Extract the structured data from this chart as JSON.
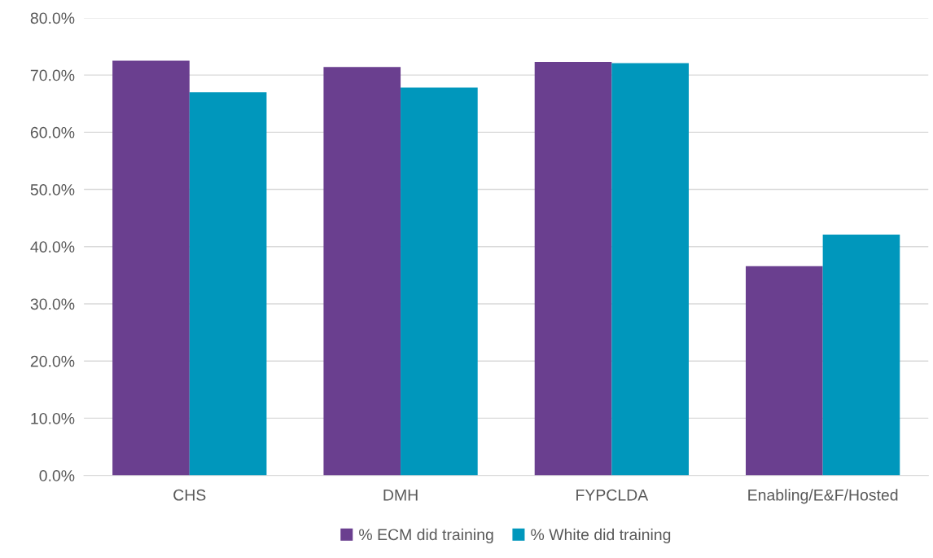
{
  "chart_data": {
    "type": "bar",
    "categories": [
      "CHS",
      "DMH",
      "FYPCLDA",
      "Enabling/E&F/Hosted"
    ],
    "series": [
      {
        "name": "% ECM did training",
        "color": "#6a3f8f",
        "values": [
          72.5,
          71.4,
          72.3,
          36.6
        ]
      },
      {
        "name": "% White did training",
        "color": "#0097bc",
        "values": [
          67.0,
          67.8,
          72.1,
          42.1
        ]
      }
    ],
    "ylim": [
      0,
      80
    ],
    "yticks": [
      {
        "value": 0,
        "label": "0.0%"
      },
      {
        "value": 10,
        "label": "10.0%"
      },
      {
        "value": 20,
        "label": "20.0%"
      },
      {
        "value": 30,
        "label": "30.0%"
      },
      {
        "value": 40,
        "label": "40.0%"
      },
      {
        "value": 50,
        "label": "50.0%"
      },
      {
        "value": 60,
        "label": "60.0%"
      },
      {
        "value": 70,
        "label": "70.0%"
      },
      {
        "value": 80,
        "label": "80.0%"
      }
    ],
    "grid": "y",
    "legend": "bottom"
  }
}
